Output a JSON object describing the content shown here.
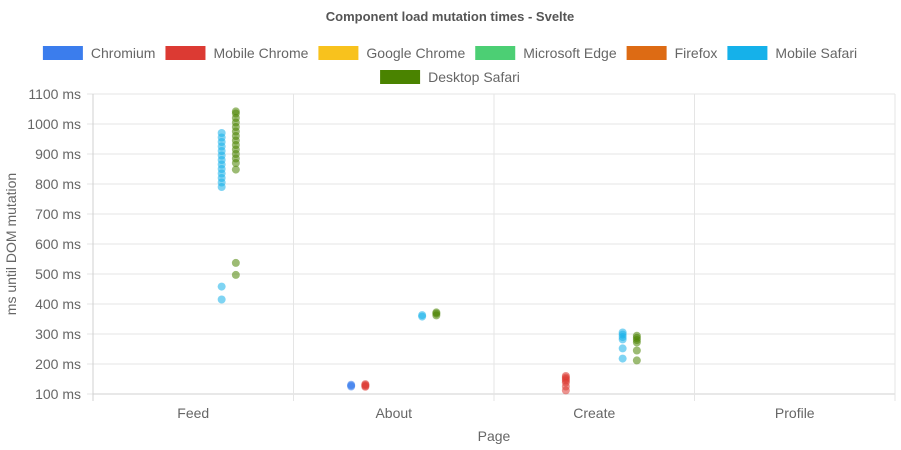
{
  "chart_data": {
    "type": "scatter",
    "title": "Component load mutation times - Svelte",
    "xlabel": "Page",
    "ylabel": "ms until DOM mutation",
    "categories": [
      "Feed",
      "About",
      "Create",
      "Profile"
    ],
    "ylim": [
      100,
      1100
    ],
    "y_ticks": [
      "100 ms",
      "200 ms",
      "300 ms",
      "400 ms",
      "500 ms",
      "600 ms",
      "700 ms",
      "800 ms",
      "900 ms",
      "1000 ms",
      "1100 ms"
    ],
    "grid": true,
    "legend_position": "top",
    "series": [
      {
        "name": "Chromium",
        "color": "#3b7ded",
        "points": [
          {
            "x": "About",
            "y": 125
          },
          {
            "x": "About",
            "y": 128
          },
          {
            "x": "About",
            "y": 131
          }
        ]
      },
      {
        "name": "Mobile Chrome",
        "color": "#dc3a33",
        "points": [
          {
            "x": "About",
            "y": 124
          },
          {
            "x": "About",
            "y": 127
          },
          {
            "x": "About",
            "y": 130
          },
          {
            "x": "About",
            "y": 133
          },
          {
            "x": "Create",
            "y": 112
          },
          {
            "x": "Create",
            "y": 125
          },
          {
            "x": "Create",
            "y": 138
          },
          {
            "x": "Create",
            "y": 145
          },
          {
            "x": "Create",
            "y": 150
          },
          {
            "x": "Create",
            "y": 155
          },
          {
            "x": "Create",
            "y": 160
          }
        ]
      },
      {
        "name": "Google Chrome",
        "color": "#f8c21d",
        "points": []
      },
      {
        "name": "Microsoft Edge",
        "color": "#4ccf74",
        "points": []
      },
      {
        "name": "Firefox",
        "color": "#dd6b14",
        "points": []
      },
      {
        "name": "Mobile Safari",
        "color": "#15b1ea",
        "points": [
          {
            "x": "Feed",
            "y": 415
          },
          {
            "x": "Feed",
            "y": 458
          },
          {
            "x": "Feed",
            "y": 790
          },
          {
            "x": "Feed",
            "y": 805
          },
          {
            "x": "Feed",
            "y": 820
          },
          {
            "x": "Feed",
            "y": 835
          },
          {
            "x": "Feed",
            "y": 850
          },
          {
            "x": "Feed",
            "y": 865
          },
          {
            "x": "Feed",
            "y": 880
          },
          {
            "x": "Feed",
            "y": 895
          },
          {
            "x": "Feed",
            "y": 910
          },
          {
            "x": "Feed",
            "y": 925
          },
          {
            "x": "Feed",
            "y": 940
          },
          {
            "x": "Feed",
            "y": 955
          },
          {
            "x": "Feed",
            "y": 970
          },
          {
            "x": "About",
            "y": 358
          },
          {
            "x": "About",
            "y": 363
          },
          {
            "x": "Create",
            "y": 218
          },
          {
            "x": "Create",
            "y": 252
          },
          {
            "x": "Create",
            "y": 282
          },
          {
            "x": "Create",
            "y": 290
          },
          {
            "x": "Create",
            "y": 298
          },
          {
            "x": "Create",
            "y": 305
          }
        ]
      },
      {
        "name": "Desktop Safari",
        "color": "#4a8300",
        "points": [
          {
            "x": "Feed",
            "y": 497
          },
          {
            "x": "Feed",
            "y": 537
          },
          {
            "x": "Feed",
            "y": 848
          },
          {
            "x": "Feed",
            "y": 870
          },
          {
            "x": "Feed",
            "y": 885
          },
          {
            "x": "Feed",
            "y": 900
          },
          {
            "x": "Feed",
            "y": 915
          },
          {
            "x": "Feed",
            "y": 930
          },
          {
            "x": "Feed",
            "y": 945
          },
          {
            "x": "Feed",
            "y": 960
          },
          {
            "x": "Feed",
            "y": 975
          },
          {
            "x": "Feed",
            "y": 990
          },
          {
            "x": "Feed",
            "y": 1005
          },
          {
            "x": "Feed",
            "y": 1020
          },
          {
            "x": "Feed",
            "y": 1035
          },
          {
            "x": "Feed",
            "y": 1042
          },
          {
            "x": "About",
            "y": 362
          },
          {
            "x": "About",
            "y": 368
          },
          {
            "x": "About",
            "y": 372
          },
          {
            "x": "Create",
            "y": 212
          },
          {
            "x": "Create",
            "y": 245
          },
          {
            "x": "Create",
            "y": 272
          },
          {
            "x": "Create",
            "y": 280
          },
          {
            "x": "Create",
            "y": 287
          },
          {
            "x": "Create",
            "y": 294
          }
        ]
      }
    ]
  }
}
